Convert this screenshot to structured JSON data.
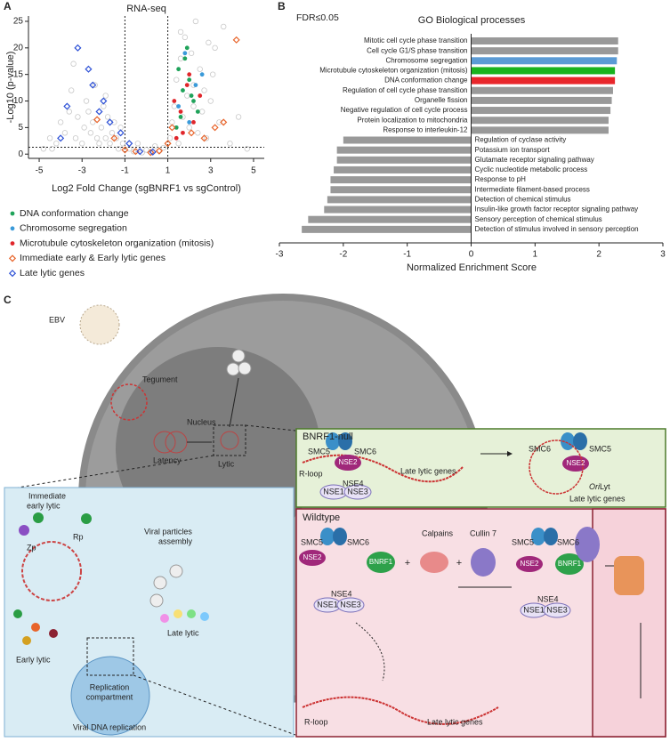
{
  "panel_labels": [
    "A",
    "B",
    "C"
  ],
  "chart_data": [
    {
      "type": "scatter",
      "title": "RNA-seq",
      "x_label": "Log2 Fold Change (sgBNRF1 vs sgControl)",
      "y_label": "-Log10 (p-value)",
      "xlim": [
        -5.5,
        5.5
      ],
      "xticks": [
        -5,
        -3,
        -1,
        1,
        3,
        5
      ],
      "ylim": [
        -0.8,
        26
      ],
      "yticks": [
        0,
        5,
        10,
        15,
        20,
        25
      ],
      "vlines": [
        -1,
        1
      ],
      "hline": 1.3,
      "series": [
        {
          "color": "#c8c8c8",
          "marker": "open-circle",
          "x": [
            -4.8,
            -4.5,
            -4.2,
            -4.0,
            -3.8,
            -3.6,
            -3.5,
            -3.3,
            -3.2,
            -3.0,
            -2.9,
            -2.8,
            -2.6,
            -2.5,
            -2.4,
            -2.2,
            -2.1,
            -2.0,
            -1.9,
            -1.8,
            -1.7,
            -1.6,
            -1.5,
            -1.4,
            -1.3,
            -1.2,
            -1.1,
            -3.4,
            -2.7,
            -2.3,
            -1.9,
            -4.4,
            -0.8,
            -0.6,
            -0.4,
            -0.2,
            0,
            0.2,
            0.4,
            0.6,
            0.8,
            1.1,
            1.2,
            1.3,
            1.4,
            1.5,
            1.6,
            1.7,
            1.8,
            1.9,
            2.0,
            2.1,
            2.2,
            2.3,
            2.4,
            2.5,
            2.6,
            2.8,
            3.0,
            3.2,
            3.4,
            3.6,
            3.9,
            4.3,
            4.7,
            2.9,
            3.1,
            2.7,
            1.6,
            2.2
          ],
          "values": [
            1,
            3,
            2,
            6,
            4,
            8,
            12,
            3,
            7,
            2,
            5,
            10,
            4,
            6,
            13,
            2,
            5,
            9,
            3,
            7,
            2,
            4,
            6,
            3,
            1,
            5,
            2,
            17,
            8,
            3,
            11,
            1,
            1,
            0.5,
            2,
            0.3,
            0.8,
            0.4,
            1.5,
            0.6,
            1.2,
            3,
            6,
            9,
            14,
            2,
            18,
            7,
            22,
            11,
            5,
            19,
            13,
            25,
            4,
            16,
            8,
            3,
            10,
            20,
            6,
            24,
            2,
            7,
            1,
            21,
            15,
            12,
            23,
            9
          ]
        },
        {
          "name": "DNA conformation change",
          "color": "#1fa35a",
          "marker": "circle",
          "x": [
            1.5,
            1.7,
            1.9,
            2.0,
            2.2,
            1.6,
            1.8,
            2.1,
            2.4,
            1.4
          ],
          "values": [
            16,
            12,
            20,
            14,
            10,
            7,
            18,
            11,
            8,
            5
          ]
        },
        {
          "name": "Chromosome segregation",
          "color": "#3a9ad9",
          "marker": "circle",
          "x": [
            1.8,
            2.3,
            1.5,
            2.6,
            2.0
          ],
          "values": [
            19,
            13,
            9,
            15,
            6
          ]
        },
        {
          "name": "Microtubule cytoskeleton organization (mitosis)",
          "color": "#e0262b",
          "marker": "circle",
          "x": [
            1.3,
            1.6,
            1.9,
            2.2,
            2.5,
            1.7,
            2.0,
            1.4
          ],
          "values": [
            10,
            8,
            13,
            6,
            11,
            4,
            15,
            3
          ]
        },
        {
          "name": "Immediate early & Early lytic genes",
          "color": "#e8642a",
          "marker": "open-diamond",
          "x": [
            -2.3,
            -1.5,
            -0.5,
            0.2,
            0.6,
            1.0,
            1.2,
            2.1,
            2.7,
            3.2,
            3.6,
            4.2,
            -1.0
          ],
          "values": [
            6.5,
            3,
            0.5,
            0.3,
            0.6,
            2,
            5,
            4,
            3,
            5,
            6,
            21.5,
            0.8
          ]
        },
        {
          "name": "Late lytic genes",
          "color": "#2b4fd6",
          "marker": "open-diamond",
          "x": [
            -3.2,
            -2.5,
            -2.0,
            -1.7,
            -3.7,
            -4.0,
            -2.2,
            -1.2,
            -0.3,
            0.3,
            -2.7,
            -0.8
          ],
          "values": [
            20,
            13,
            10,
            6,
            9,
            3,
            8,
            4,
            0.5,
            0.4,
            16,
            2
          ]
        }
      ]
    },
    {
      "type": "bar",
      "orientation": "horizontal",
      "title": "GO Biological processes",
      "annotation": "FDR≤0.05",
      "x_label": "Normalized Enrichment Score",
      "xlim": [
        -3,
        3
      ],
      "xticks": [
        -3,
        -2,
        -1,
        0,
        1,
        2,
        3
      ],
      "categories": [
        "Mitotic cell cycle phase transition",
        "Cell cycle G1/S phase transition",
        "Chromosome segregation",
        "Microtubule cytoskeleton organization (mitosis)",
        "DNA conformation change",
        "Regulation of cell cycle phase transition",
        "Organelle fission",
        "Negative regulation of cell cycle process",
        "Protein localization to mitochondria",
        "Response to interleukin-12",
        "Regulation of cyclase activity",
        "Potassium ion transport",
        "Glutamate receptor signaling pathway",
        "Cyclic nucleotide metabolic process",
        "Response to pH",
        "Intermediate filament-based process",
        "Detection of chemical stimulus",
        "Insulin-like growth factor receptor signaling pathway",
        "Sensory perception of chemical stimulus",
        "Detection of stimulus involved in sensory perception"
      ],
      "values": [
        2.3,
        2.3,
        2.28,
        2.25,
        2.25,
        2.22,
        2.2,
        2.18,
        2.15,
        2.15,
        -2.0,
        -2.1,
        -2.1,
        -2.15,
        -2.2,
        -2.2,
        -2.25,
        -2.3,
        -2.55,
        -2.65
      ],
      "colors": [
        "#999999",
        "#999999",
        "#5b9bd5",
        "#19b31e",
        "#e8262b",
        "#999999",
        "#999999",
        "#999999",
        "#999999",
        "#999999",
        "#999999",
        "#999999",
        "#999999",
        "#999999",
        "#999999",
        "#999999",
        "#999999",
        "#999999",
        "#999999",
        "#999999"
      ]
    }
  ],
  "diagram": {
    "cell": {
      "virus": "EBV",
      "tegument": "Tegument",
      "nucleus": "Nucleus",
      "latency": "Latency",
      "lytic": "Lytic"
    },
    "inset": {
      "immediate_early": [
        "Immediate",
        "early lytic"
      ],
      "zp": "Zp",
      "rp": "Rp",
      "assembly": [
        "Viral particles",
        "assembly"
      ],
      "early": "Early lytic",
      "late": "Late lytic",
      "compartment": [
        "Replication",
        "compartment"
      ],
      "replication": "Viral DNA replication"
    },
    "null_panel": {
      "title": "BNRF1-null",
      "left": {
        "smc5": "SMC5",
        "smc6": "SMC6",
        "nse2": "NSE2",
        "rloop": "R-loop",
        "genes": "Late lytic genes",
        "nse4": "NSE4",
        "nse1": "NSE1",
        "nse3": "NSE3"
      },
      "right": {
        "smc6": "SMC6",
        "smc5": "SMC5",
        "nse2": "NSE2",
        "ori": [
          "Ori",
          "Lyt"
        ],
        "genes": "Late lytic genes"
      }
    },
    "wildtype": {
      "title": "Wildtype",
      "left": {
        "smc5": "SMC5",
        "smc6": "SMC6",
        "nse2": "NSE2",
        "nse4": "NSE4",
        "nse1": "NSE1",
        "nse3": "NSE3"
      },
      "bnrf1": "BNRF1",
      "calpains": "Calpains",
      "cullin": "Cullin 7",
      "right": {
        "smc5": "SMC5",
        "smc6": "SMC6",
        "bnrf1": "BNRF1",
        "nse2": "NSE2",
        "nse4": "NSE4",
        "nse1": "NSE1",
        "nse3": "NSE3"
      },
      "rloop": "R-loop",
      "genes": "Late lytic genes"
    }
  }
}
